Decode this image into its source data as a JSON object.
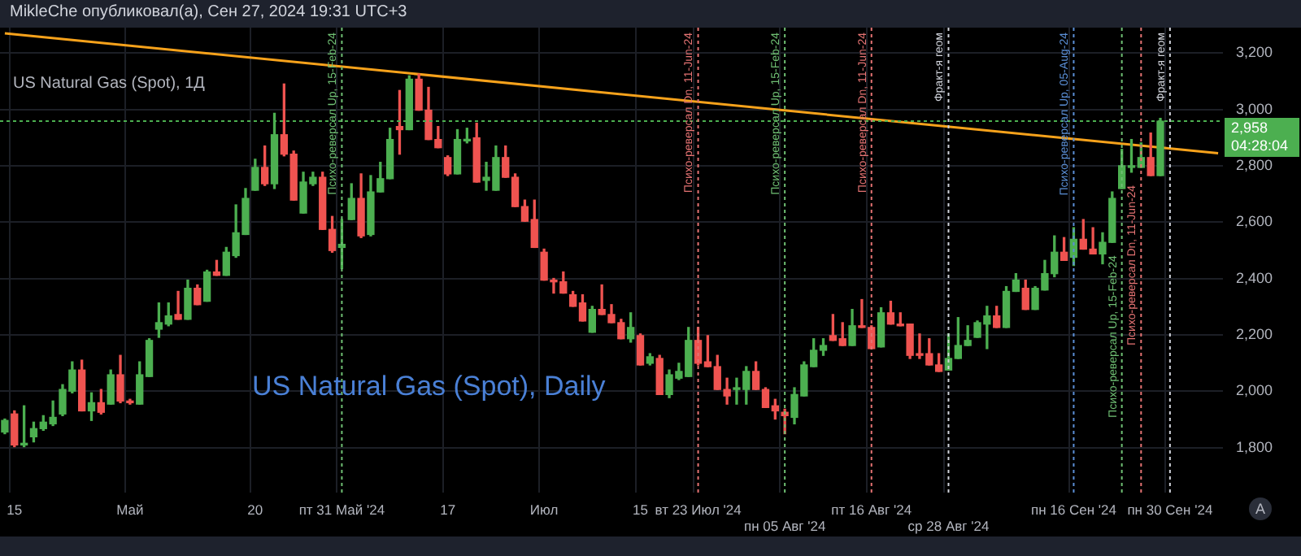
{
  "chart_data": {
    "type": "candlestick",
    "title": "US Natural Gas (Spot), 1Д",
    "annotations": [
      "MikleChe опубликовал(а), Сен 27, 2024 19:31 UTC+3",
      "US Natural Gas (Spot), Daily",
      "A",
      "Психо-реверсал Up, 15-Feb-24",
      "Психо-реверсал Dn, 11-Jun-24",
      {
        "text": "Психо-реверсал Up, 15-Feb-24",
        "x": "пт 31 Май '24"
      },
      "Психо-реверсал Dn, 11-Jun-24",
      {
        "text": "Психо-реверсал Up, 15-Feb-24",
        "x": "пн 05 Авг '24"
      },
      {
        "text": "Психо-реверсал Dn, 11-Jun-24",
        "x": "пт 16 Авг '24"
      },
      "Фракт-я геом",
      {
        "text": "Психо-реверсал Up, 05-Aug-24",
        "x": "пн 16 Сен '24"
      },
      "Фракт-я геом"
    ],
    "categories": [
      null,
      "15",
      null,
      null,
      null,
      null,
      null,
      null,
      null,
      null,
      null,
      null,
      null,
      "Май",
      null,
      null,
      null,
      null,
      null,
      null,
      null,
      null,
      null,
      null,
      null,
      null,
      "20",
      null,
      null,
      null,
      null,
      null,
      null,
      null,
      null,
      "пт 31 Май '24",
      null,
      null,
      null,
      null,
      null,
      null,
      null,
      null,
      null,
      null,
      "17",
      null,
      null,
      null,
      null,
      null,
      null,
      null,
      null,
      null,
      "Июл",
      null,
      null,
      null,
      null,
      null,
      null,
      null,
      null,
      null,
      "15",
      null,
      null,
      null,
      null,
      null,
      "вт 23 Июл '24",
      null,
      null,
      null,
      null,
      null,
      null,
      null,
      null,
      "пн 05 Авг '24",
      null,
      null,
      null,
      null,
      null,
      null,
      null,
      null,
      "пт 16 Авг '24",
      null,
      null,
      null,
      null,
      null,
      null,
      null,
      "ср 28 Авг '24",
      null,
      null,
      null,
      null,
      null,
      null,
      null,
      null,
      null,
      null,
      null,
      null,
      "пн 16 Сен '24",
      null,
      null,
      null,
      null,
      null,
      null,
      null,
      null,
      null,
      "пн 30 Сен '24",
      null,
      null,
      null,
      null,
      null
    ],
    "ohlc": [
      [
        1855,
        1901,
        1849,
        1896
      ],
      [
        1919,
        1930,
        1803,
        1809
      ],
      [
        1809,
        1948,
        1803,
        1815
      ],
      [
        1838,
        1890,
        1820,
        1867
      ],
      [
        1867,
        1913,
        1861,
        1890
      ],
      [
        1884,
        1965,
        1878,
        1907
      ],
      [
        1919,
        2023,
        1913,
        2006
      ],
      [
        2000,
        2104,
        1994,
        2075
      ],
      [
        2075,
        2110,
        1930,
        1930
      ],
      [
        1930,
        1994,
        1896,
        1959
      ],
      [
        1959,
        2006,
        1919,
        1925
      ],
      [
        1954,
        2075,
        1954,
        2058
      ],
      [
        2058,
        2127,
        1959,
        1965
      ],
      [
        1965,
        1971,
        1954,
        1959
      ],
      [
        1954,
        2104,
        1954,
        2058
      ],
      [
        2052,
        2186,
        2052,
        2180
      ],
      [
        2220,
        2313,
        2191,
        2243
      ],
      [
        2238,
        2313,
        2232,
        2267
      ],
      [
        2272,
        2354,
        2255,
        2255
      ],
      [
        2255,
        2394,
        2255,
        2365
      ],
      [
        2365,
        2377,
        2307,
        2307
      ],
      [
        2319,
        2429,
        2319,
        2423
      ],
      [
        2423,
        2464,
        2411,
        2411
      ],
      [
        2411,
        2510,
        2411,
        2493
      ],
      [
        2481,
        2661,
        2475,
        2562
      ],
      [
        2556,
        2719,
        2556,
        2684
      ],
      [
        2713,
        2823,
        2713,
        2794
      ],
      [
        2794,
        2870,
        2730,
        2736
      ],
      [
        2736,
        2986,
        2719,
        2910
      ],
      [
        2910,
        3090,
        2835,
        2841
      ],
      [
        2841,
        2852,
        2678,
        2678
      ],
      [
        2632,
        2777,
        2632,
        2742
      ],
      [
        2736,
        2777,
        2730,
        2759
      ],
      [
        2759,
        2777,
        2574,
        2574
      ],
      [
        2574,
        2620,
        2493,
        2499
      ],
      [
        2510,
        2609,
        2435,
        2521
      ],
      [
        2609,
        2736,
        2609,
        2684
      ],
      [
        2684,
        2771,
        2545,
        2551
      ],
      [
        2556,
        2765,
        2551,
        2707
      ],
      [
        2707,
        2812,
        2707,
        2754
      ],
      [
        2754,
        2933,
        2754,
        2893
      ],
      [
        2939,
        3067,
        2841,
        2928
      ],
      [
        2928,
        3119,
        2928,
        3107
      ],
      [
        3107,
        3125,
        2997,
        2997
      ],
      [
        2997,
        3078,
        2893,
        2893
      ],
      [
        2893,
        2939,
        2864,
        2864
      ],
      [
        2829,
        2835,
        2765,
        2771
      ],
      [
        2771,
        2928,
        2771,
        2893
      ],
      [
        2888,
        2933,
        2881,
        2893
      ],
      [
        2899,
        2951,
        2742,
        2742
      ],
      [
        2748,
        2812,
        2713,
        2759
      ],
      [
        2713,
        2870,
        2713,
        2829
      ],
      [
        2829,
        2870,
        2759,
        2759
      ],
      [
        2759,
        2771,
        2655,
        2655
      ],
      [
        2655,
        2678,
        2603,
        2603
      ],
      [
        2609,
        2678,
        2510,
        2510
      ],
      [
        2493,
        2504,
        2394,
        2394
      ],
      [
        2394,
        2400,
        2348,
        2388
      ],
      [
        2388,
        2423,
        2348,
        2348
      ],
      [
        2342,
        2354,
        2301,
        2301
      ],
      [
        2313,
        2342,
        2249,
        2249
      ],
      [
        2209,
        2301,
        2209,
        2290
      ],
      [
        2290,
        2377,
        2272,
        2272
      ],
      [
        2272,
        2307,
        2243,
        2243
      ],
      [
        2243,
        2255,
        2186,
        2186
      ],
      [
        2186,
        2278,
        2174,
        2226
      ],
      [
        2197,
        2203,
        2093,
        2093
      ],
      [
        2099,
        2133,
        2093,
        2122
      ],
      [
        2116,
        2127,
        1988,
        1988
      ],
      [
        1988,
        2075,
        1977,
        2058
      ],
      [
        2046,
        2099,
        2041,
        2070
      ],
      [
        2052,
        2226,
        2052,
        2180
      ],
      [
        2180,
        2226,
        2093,
        2099
      ],
      [
        2104,
        2197,
        2087,
        2087
      ],
      [
        2087,
        2127,
        2006,
        2006
      ],
      [
        2006,
        2046,
        1954,
        1983
      ],
      [
        2006,
        2046,
        1954,
        2012
      ],
      [
        2006,
        2087,
        1954,
        2070
      ],
      [
        2070,
        2104,
        2006,
        2006
      ],
      [
        2006,
        2012,
        1942,
        1942
      ],
      [
        1948,
        1971,
        1901,
        1930
      ],
      [
        1925,
        1936,
        1849,
        1913
      ],
      [
        1907,
        2012,
        1884,
        1988
      ],
      [
        1983,
        2104,
        1983,
        2093
      ],
      [
        2087,
        2186,
        2087,
        2145
      ],
      [
        2145,
        2186,
        2127,
        2162
      ],
      [
        2197,
        2272,
        2180,
        2180
      ],
      [
        2186,
        2243,
        2162,
        2162
      ],
      [
        2162,
        2290,
        2162,
        2232
      ],
      [
        2232,
        2325,
        2226,
        2226
      ],
      [
        2226,
        2232,
        2151,
        2151
      ],
      [
        2157,
        2296,
        2157,
        2278
      ],
      [
        2278,
        2319,
        2238,
        2238
      ],
      [
        2238,
        2278,
        2232,
        2232
      ],
      [
        2238,
        2238,
        2116,
        2127
      ],
      [
        2133,
        2203,
        2116,
        2127
      ],
      [
        2133,
        2186,
        2093,
        2093
      ],
      [
        2093,
        2133,
        2070,
        2070
      ],
      [
        2075,
        2203,
        2075,
        2116
      ],
      [
        2116,
        2261,
        2116,
        2162
      ],
      [
        2162,
        2232,
        2162,
        2180
      ],
      [
        2191,
        2249,
        2191,
        2243
      ],
      [
        2238,
        2301,
        2151,
        2267
      ],
      [
        2267,
        2301,
        2226,
        2226
      ],
      [
        2226,
        2371,
        2226,
        2354
      ],
      [
        2354,
        2417,
        2354,
        2394
      ],
      [
        2365,
        2394,
        2290,
        2290
      ],
      [
        2290,
        2371,
        2290,
        2365
      ],
      [
        2359,
        2464,
        2359,
        2417
      ],
      [
        2417,
        2551,
        2406,
        2493
      ],
      [
        2493,
        2545,
        2464,
        2464
      ],
      [
        2475,
        2580,
        2446,
        2539
      ],
      [
        2539,
        2609,
        2504,
        2504
      ],
      [
        2504,
        2580,
        2487,
        2487
      ],
      [
        2487,
        2562,
        2452,
        2528
      ],
      [
        2528,
        2707,
        2528,
        2684
      ],
      [
        2719,
        2858,
        2719,
        2800
      ],
      [
        2794,
        2893,
        2777,
        2800
      ],
      [
        2794,
        2881,
        2794,
        2829
      ],
      [
        2829,
        2916,
        2765,
        2765
      ],
      [
        2765,
        2968,
        2765,
        2958
      ],
      null,
      null,
      null,
      null,
      null,
      null
    ],
    "colors": [
      "#4caf50",
      "#ef5350",
      "#4caf50",
      "#4caf50",
      "#4caf50",
      "#4caf50",
      "#4caf50",
      "#4caf50",
      "#ef5350",
      "#4caf50",
      "#ef5350",
      "#4caf50",
      "#ef5350",
      "#ef5350",
      "#4caf50",
      "#4caf50",
      "#4caf50",
      "#4caf50",
      "#ef5350",
      "#4caf50",
      "#ef5350",
      "#4caf50",
      "#ef5350",
      "#4caf50",
      "#4caf50",
      "#4caf50",
      "#4caf50",
      "#ef5350",
      "#4caf50",
      "#ef5350",
      "#ef5350",
      "#4caf50",
      "#4caf50",
      "#ef5350",
      "#ef5350",
      "#4caf50",
      "#4caf50",
      "#ef5350",
      "#4caf50",
      "#4caf50",
      "#4caf50",
      "#ef5350",
      "#4caf50",
      "#ef5350",
      "#ef5350",
      "#ef5350",
      "#ef5350",
      "#4caf50",
      "#4caf50",
      "#ef5350",
      "#4caf50",
      "#4caf50",
      "#ef5350",
      "#ef5350",
      "#ef5350",
      "#ef5350",
      "#ef5350",
      "#ef5350",
      "#ef5350",
      "#ef5350",
      "#ef5350",
      "#4caf50",
      "#ef5350",
      "#ef5350",
      "#ef5350",
      "#4caf50",
      "#ef5350",
      "#4caf50",
      "#ef5350",
      "#4caf50",
      "#4caf50",
      "#4caf50",
      "#ef5350",
      "#ef5350",
      "#ef5350",
      "#ef5350",
      "#4caf50",
      "#4caf50",
      "#ef5350",
      "#ef5350",
      "#ef5350",
      "#ef5350",
      "#4caf50",
      "#4caf50",
      "#4caf50",
      "#4caf50",
      "#ef5350",
      "#ef5350",
      "#4caf50",
      "#ef5350",
      "#ef5350",
      "#4caf50",
      "#ef5350",
      "#ef5350",
      "#ef5350",
      "#ef5350",
      "#ef5350",
      "#ef5350",
      "#4caf50",
      "#4caf50",
      "#4caf50",
      "#4caf50",
      "#4caf50",
      "#ef5350",
      "#4caf50",
      "#4caf50",
      "#ef5350",
      "#4caf50",
      "#4caf50",
      "#4caf50",
      "#ef5350",
      "#4caf50",
      "#ef5350",
      "#ef5350",
      "#4caf50",
      "#4caf50",
      "#4caf50",
      "#4caf50",
      "#4caf50",
      "#ef5350",
      "#4caf50",
      null,
      null,
      null,
      null,
      null,
      null
    ],
    "series": [
      {
        "type": "line",
        "color": "#f7a21b",
        "marker": "none",
        "values": [
          3270,
          null,
          null,
          null,
          null,
          null,
          null,
          null,
          null,
          null,
          null,
          null,
          null,
          null,
          null,
          null,
          null,
          null,
          null,
          null,
          null,
          null,
          null,
          null,
          null,
          null,
          null,
          null,
          null,
          null,
          null,
          null,
          null,
          null,
          null,
          null,
          null,
          null,
          null,
          null,
          null,
          null,
          null,
          null,
          null,
          null,
          null,
          null,
          null,
          null,
          null,
          null,
          null,
          null,
          null,
          null,
          null,
          null,
          null,
          null,
          null,
          null,
          null,
          null,
          null,
          null,
          null,
          null,
          null,
          null,
          null,
          null,
          null,
          null,
          null,
          null,
          null,
          null,
          null,
          null,
          null,
          null,
          null,
          null,
          null,
          null,
          null,
          null,
          null,
          null,
          null,
          null,
          null,
          null,
          null,
          null,
          null,
          null,
          null,
          null,
          null,
          null,
          null,
          null,
          null,
          null,
          null,
          null,
          null,
          null,
          null,
          null,
          null,
          null,
          null,
          null,
          null,
          null,
          null,
          null,
          null,
          null,
          null,
          null,
          null,
          null,
          2844
        ]
      }
    ],
    "ylim": [
      1640,
      3290
    ],
    "yticks": [
      {
        "value": 1800,
        "label": "1,800"
      },
      {
        "value": 2000,
        "label": "2,000"
      },
      {
        "value": 2200,
        "label": "2,200"
      },
      {
        "value": 2400,
        "label": "2,400"
      },
      {
        "value": 2600,
        "label": "2,600"
      },
      {
        "value": 2800,
        "label": "2,800"
      },
      {
        "value": 3000,
        "label": "3,000"
      },
      {
        "value": 3200,
        "label": "3,200"
      }
    ],
    "grid": true,
    "ref_lines": [
      {
        "axis": "y",
        "value": 2958,
        "label": "2,958\n04:28:04",
        "color": "#4caf50",
        "line_style": "dotted"
      }
    ]
  }
}
